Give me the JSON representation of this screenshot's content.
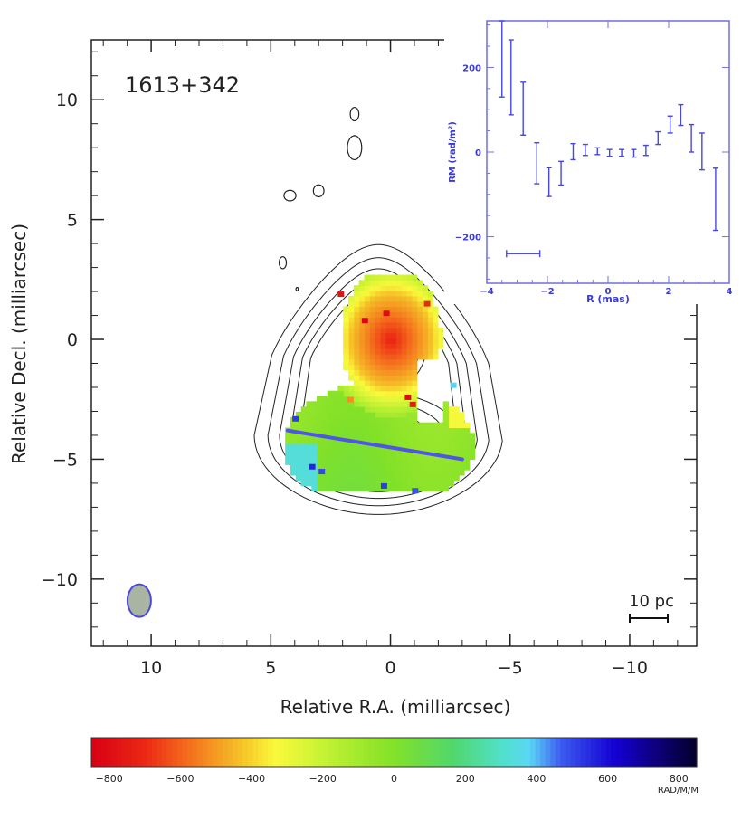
{
  "chart_data": [
    {
      "type": "heatmap",
      "title": "1613+342",
      "xlabel": "Relative R.A. (milliarcsec)",
      "ylabel": "Relative Decl. (milliarcsec)",
      "xlim": [
        12.5,
        -12.8
      ],
      "ylim": [
        -12.8,
        12.5
      ],
      "x_ticks": [
        10,
        5,
        0,
        -5,
        -10
      ],
      "x_tick_labels": [
        "10",
        "5",
        "0",
        "−5",
        "−10"
      ],
      "y_ticks": [
        10,
        5,
        0,
        -5,
        -10
      ],
      "y_tick_labels": [
        "10",
        "5",
        "0",
        "−5",
        "−10"
      ],
      "scale_bar_label": "10 pc",
      "transverse_slice": {
        "from": [
          4.3,
          -3.8
        ],
        "to": [
          -3.0,
          -5.0
        ]
      },
      "beam": {
        "center": [
          10.5,
          -10.9
        ]
      },
      "colorbar": {
        "ticks": [
          -800,
          -600,
          -400,
          -200,
          0,
          200,
          400,
          600,
          800
        ],
        "tick_labels": [
          "−800",
          "−600",
          "−400",
          "−200",
          "0",
          "200",
          "400",
          "600",
          "800"
        ],
        "unit": "RAD/M/M",
        "range": [
          -850,
          850
        ]
      }
    },
    {
      "type": "scatter",
      "title": "",
      "xlabel": "R (mas)",
      "ylabel": "RM (rad/m²)",
      "xlim": [
        -4,
        4
      ],
      "ylim": [
        -310,
        310
      ],
      "x_ticks": [
        -4,
        -2,
        0,
        2,
        4
      ],
      "x_tick_labels": [
        "−4",
        "−2",
        "0",
        "2",
        "4"
      ],
      "y_ticks": [
        -200,
        0,
        200
      ],
      "y_tick_labels": [
        "−200",
        "0",
        "200"
      ],
      "points": [
        {
          "x": -3.5,
          "y": 230,
          "lo": 130,
          "hi": 310
        },
        {
          "x": -3.2,
          "y": 175,
          "lo": 88,
          "hi": 265
        },
        {
          "x": -2.8,
          "y": 103,
          "lo": 40,
          "hi": 165
        },
        {
          "x": -2.35,
          "y": -25,
          "lo": -75,
          "hi": 22
        },
        {
          "x": -1.95,
          "y": -70,
          "lo": -105,
          "hi": -37
        },
        {
          "x": -1.55,
          "y": -48,
          "lo": -78,
          "hi": -22
        },
        {
          "x": -1.15,
          "y": 0,
          "lo": -18,
          "hi": 20
        },
        {
          "x": -0.75,
          "y": 5,
          "lo": -8,
          "hi": 18
        },
        {
          "x": -0.35,
          "y": 2,
          "lo": -6,
          "hi": 10
        },
        {
          "x": 0.05,
          "y": -2,
          "lo": -10,
          "hi": 6
        },
        {
          "x": 0.45,
          "y": -2,
          "lo": -10,
          "hi": 6
        },
        {
          "x": 0.85,
          "y": -3,
          "lo": -12,
          "hi": 6
        },
        {
          "x": 1.25,
          "y": 4,
          "lo": -8,
          "hi": 16
        },
        {
          "x": 1.65,
          "y": 33,
          "lo": 18,
          "hi": 48
        },
        {
          "x": 2.05,
          "y": 65,
          "lo": 45,
          "hi": 85
        },
        {
          "x": 2.4,
          "y": 88,
          "lo": 63,
          "hi": 112
        },
        {
          "x": 2.75,
          "y": 32,
          "lo": 0,
          "hi": 65
        },
        {
          "x": 3.1,
          "y": 0,
          "lo": -42,
          "hi": 45
        },
        {
          "x": 3.55,
          "y": -112,
          "lo": -185,
          "hi": -38
        }
      ],
      "resolution_bar": {
        "from": -3.35,
        "to": -2.25,
        "y": -240
      }
    }
  ]
}
